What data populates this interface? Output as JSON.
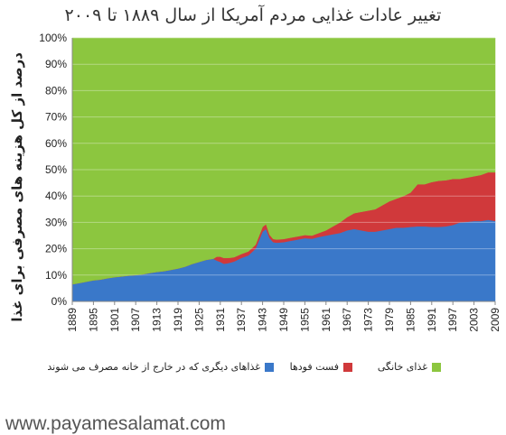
{
  "watermark": "www.payamesalamat.com",
  "chart_data": {
    "type": "area",
    "stacked": true,
    "title": "تغییر عادات غذایی مردم آمریکا از سال ۱۸۸۹ تا ۲۰۰۹",
    "ylabel": "درصد از کل هزینه های مصرفی برای غذا",
    "xlabel": "",
    "ylim": [
      0,
      100
    ],
    "xlim": [
      1889,
      2009
    ],
    "x_ticks": [
      1889,
      1895,
      1901,
      1907,
      1913,
      1919,
      1925,
      1931,
      1937,
      1943,
      1949,
      1955,
      1961,
      1967,
      1973,
      1979,
      1985,
      1991,
      1997,
      2003,
      2009
    ],
    "y_ticks": [
      "0%",
      "10%",
      "20%",
      "30%",
      "40%",
      "50%",
      "60%",
      "70%",
      "80%",
      "90%",
      "100%"
    ],
    "grid": true,
    "legend_position": "bottom",
    "x": [
      1889,
      1891,
      1893,
      1895,
      1897,
      1899,
      1901,
      1903,
      1905,
      1907,
      1909,
      1911,
      1913,
      1915,
      1917,
      1919,
      1921,
      1923,
      1925,
      1927,
      1929,
      1930,
      1931,
      1932,
      1933,
      1934,
      1935,
      1937,
      1939,
      1941,
      1943,
      1944,
      1945,
      1946,
      1947,
      1949,
      1951,
      1953,
      1955,
      1957,
      1959,
      1961,
      1963,
      1965,
      1967,
      1969,
      1971,
      1973,
      1975,
      1977,
      1979,
      1981,
      1983,
      1985,
      1987,
      1989,
      1991,
      1993,
      1995,
      1997,
      1999,
      2001,
      2003,
      2005,
      2007,
      2009
    ],
    "series": [
      {
        "name": "غذاهای دیگری که در خارج از خانه مصرف می شوند",
        "color": "#3a78c9",
        "values": [
          6.5,
          7,
          7.5,
          8,
          8.3,
          8.8,
          9.2,
          9.5,
          9.8,
          10,
          10.3,
          10.8,
          11.2,
          11.5,
          12,
          12.5,
          13.2,
          14.2,
          15,
          15.8,
          16.2,
          15.5,
          15,
          14.3,
          14.5,
          14.8,
          15.2,
          16.5,
          17.5,
          20,
          26.5,
          27.5,
          24,
          22.5,
          22.3,
          22.5,
          23,
          23.5,
          24,
          23.8,
          24.5,
          25,
          25.5,
          26,
          27,
          27.5,
          27,
          26.5,
          26.5,
          27,
          27.5,
          28,
          28,
          28.3,
          28.5,
          28.5,
          28.3,
          28.3,
          28.5,
          29,
          30,
          30.2,
          30.5,
          30.5,
          31,
          30.5
        ]
      },
      {
        "name": "فست فودها",
        "color": "#d0393b",
        "values": [
          0,
          0,
          0,
          0,
          0,
          0,
          0,
          0,
          0,
          0,
          0,
          0,
          0,
          0,
          0,
          0,
          0,
          0,
          0,
          0,
          0,
          1.5,
          2,
          2.2,
          2,
          1.8,
          1.6,
          1.5,
          1.5,
          1.5,
          1.8,
          1.8,
          1.3,
          1.2,
          1.2,
          1.2,
          1.2,
          1.2,
          1.2,
          1.2,
          1.5,
          2,
          3,
          4,
          5,
          6,
          7,
          8,
          8.5,
          9.5,
          10.5,
          11,
          12,
          13,
          16,
          16,
          17,
          17.5,
          17.5,
          17.5,
          16.5,
          16.8,
          17,
          17.5,
          18,
          18.5
        ]
      },
      {
        "name": "غذای خانگی",
        "color": "#8cc63f",
        "values": [
          93.5,
          93,
          92.5,
          92,
          91.7,
          91.2,
          90.8,
          90.5,
          90.2,
          90,
          89.7,
          89.2,
          88.8,
          88.5,
          88,
          87.5,
          86.8,
          85.8,
          85,
          84.2,
          83.8,
          83,
          83,
          83.5,
          83.5,
          83.4,
          83.2,
          82,
          81,
          78.5,
          71.7,
          70.7,
          74.7,
          76.3,
          76.5,
          76.3,
          75.8,
          75.3,
          74.8,
          75,
          74,
          73,
          71.5,
          70,
          68,
          66.5,
          66,
          65.5,
          65,
          63.5,
          62,
          61,
          60,
          58.7,
          55.5,
          55.5,
          54.7,
          54.2,
          54,
          53.5,
          53.5,
          53,
          52.5,
          52,
          51,
          51
        ]
      }
    ]
  },
  "legend": [
    {
      "label": "غذای خانگی",
      "color": "#8cc63f"
    },
    {
      "label": "فست فودها",
      "color": "#d0393b"
    },
    {
      "label": "غذاهای دیگری که در خارج از خانه مصرف می شوند",
      "color": "#3a78c9"
    }
  ]
}
